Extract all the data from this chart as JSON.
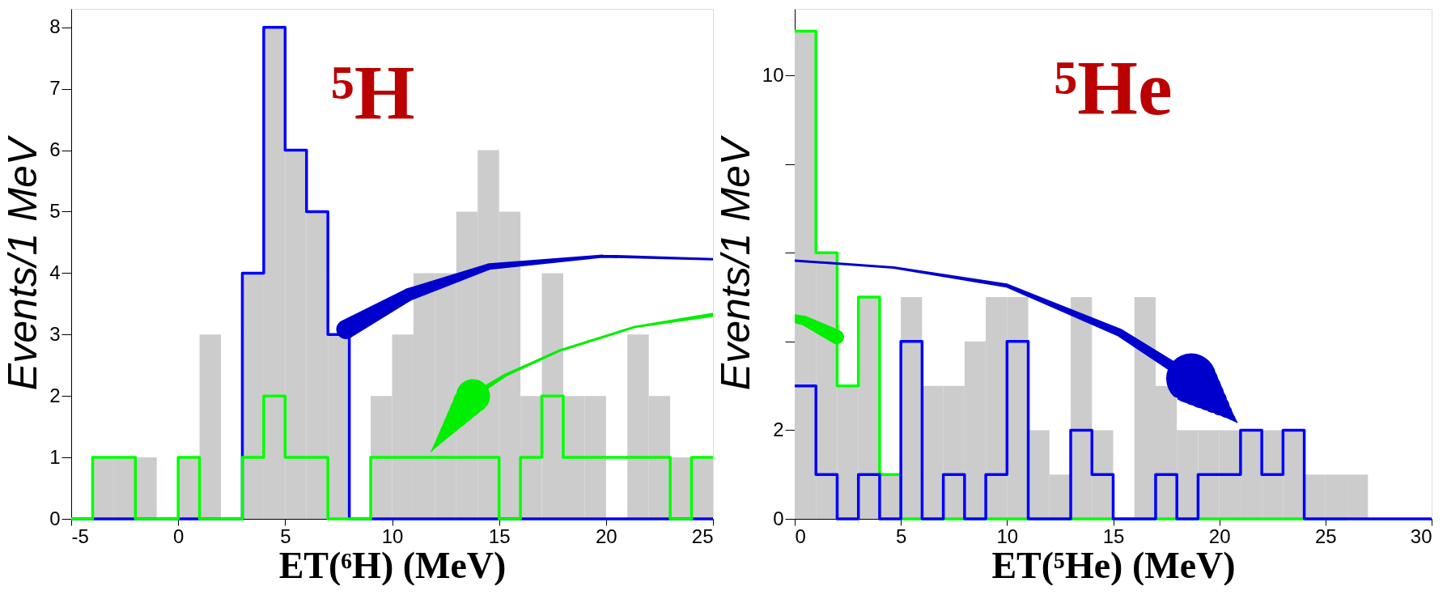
{
  "chart_data": [
    {
      "type": "histogram",
      "xlabel": "ET(⁶H) (MeV)",
      "ylabel": "Events/1 MeV",
      "annotations": [
        "⁵H"
      ],
      "bins": [
        -5,
        -4,
        -3,
        -2,
        -1,
        0,
        1,
        2,
        3,
        4,
        5,
        6,
        7,
        8,
        9,
        10,
        11,
        12,
        13,
        14,
        15,
        16,
        17,
        18,
        19,
        20,
        21,
        22,
        23,
        24,
        25
      ],
      "xlim": [
        -5,
        25
      ],
      "xticks": [
        -5,
        0,
        5,
        10,
        15,
        20,
        25
      ],
      "ylim": [
        0,
        8.3
      ],
      "yticks": [
        0,
        1,
        2,
        3,
        4,
        5,
        6,
        7,
        8
      ],
      "series": [
        {
          "type": "histogram",
          "color": "#cccccc",
          "values": [
            0,
            1,
            1,
            1,
            0,
            1,
            3,
            0,
            4,
            8,
            6,
            5,
            3,
            0,
            2,
            3,
            4,
            4,
            5,
            6,
            5,
            2,
            4,
            2,
            2,
            0,
            3,
            2,
            1,
            1
          ]
        },
        {
          "type": "step",
          "color": "#0000ff",
          "x": [
            -5,
            -4,
            -3,
            -2,
            -1,
            0,
            1,
            2,
            3,
            4,
            5,
            6,
            7,
            8,
            9,
            10,
            11,
            12,
            13,
            14,
            15,
            16,
            17,
            18,
            19,
            20,
            21,
            22,
            23,
            24,
            25
          ],
          "values": [
            0,
            0,
            0,
            0,
            0,
            0,
            0,
            0,
            4,
            8,
            6,
            5,
            3,
            0,
            0,
            0,
            0,
            0,
            0,
            0,
            0,
            0,
            0,
            0,
            0,
            0,
            0,
            0,
            0,
            0,
            0
          ]
        },
        {
          "type": "step",
          "color": "#00ff00",
          "x": [
            -5,
            -4,
            -3,
            -2,
            -1,
            0,
            1,
            2,
            3,
            4,
            5,
            6,
            7,
            8,
            9,
            10,
            11,
            12,
            13,
            14,
            15,
            16,
            17,
            18,
            19,
            20,
            21,
            22,
            23,
            24,
            25
          ],
          "values": [
            0,
            1,
            1,
            0,
            0,
            1,
            0,
            0,
            1,
            2,
            1,
            1,
            0,
            0,
            1,
            1,
            1,
            1,
            1,
            1,
            0,
            1,
            2,
            1,
            1,
            1,
            1,
            1,
            0,
            1,
            1
          ]
        }
      ]
    },
    {
      "type": "histogram",
      "xlabel": "ET(⁵He) (MeV)",
      "ylabel": "Events/1 MeV",
      "annotations": [
        "⁵He"
      ],
      "bins": [
        0,
        1,
        2,
        3,
        4,
        5,
        6,
        7,
        8,
        9,
        10,
        11,
        12,
        13,
        14,
        15,
        16,
        17,
        18,
        19,
        20,
        21,
        22,
        23,
        24,
        25,
        26,
        27,
        28,
        29,
        30
      ],
      "xlim": [
        0,
        30
      ],
      "xticks": [
        0,
        5,
        10,
        15,
        20,
        25,
        30
      ],
      "ylim": [
        0,
        11.5
      ],
      "yticks": [
        0,
        2,
        {
          "value": 4,
          "label": null
        },
        {
          "value": 6,
          "label": null
        },
        {
          "value": 8,
          "label": null
        },
        10
      ],
      "series": [
        {
          "type": "histogram",
          "color": "#cccccc",
          "values": [
            11,
            6,
            3,
            5,
            1,
            5,
            3,
            3,
            4,
            5,
            5,
            2,
            1,
            5,
            2,
            0,
            5,
            3,
            2,
            2,
            2,
            2,
            2,
            2,
            1,
            1,
            1,
            0,
            0,
            0
          ]
        },
        {
          "type": "step",
          "color": "#00ff00",
          "x": [
            0,
            1,
            2,
            3,
            4,
            5,
            6,
            7,
            8,
            9,
            10,
            11,
            12,
            13,
            14,
            15,
            16,
            17,
            18,
            19,
            20,
            21,
            22,
            23,
            24,
            25,
            26
          ],
          "values": [
            11,
            6,
            3,
            5,
            1,
            0,
            0,
            0,
            0,
            0,
            0,
            0,
            0,
            0,
            0,
            0,
            0,
            0,
            0,
            0,
            0,
            0,
            0,
            0,
            0,
            0,
            0
          ]
        },
        {
          "type": "step",
          "color": "#0000ff",
          "x": [
            0,
            1,
            2,
            3,
            4,
            5,
            6,
            7,
            8,
            9,
            10,
            11,
            12,
            13,
            14,
            15,
            16,
            17,
            18,
            19,
            20,
            21,
            22,
            23,
            24,
            25,
            26,
            27,
            28,
            29,
            30
          ],
          "values": [
            3,
            1,
            0,
            1,
            0,
            4,
            0,
            1,
            0,
            1,
            4,
            0,
            0,
            2,
            1,
            0,
            0,
            1,
            0,
            1,
            1,
            2,
            1,
            2,
            0,
            0,
            0,
            0,
            0,
            0,
            0
          ]
        }
      ]
    }
  ]
}
